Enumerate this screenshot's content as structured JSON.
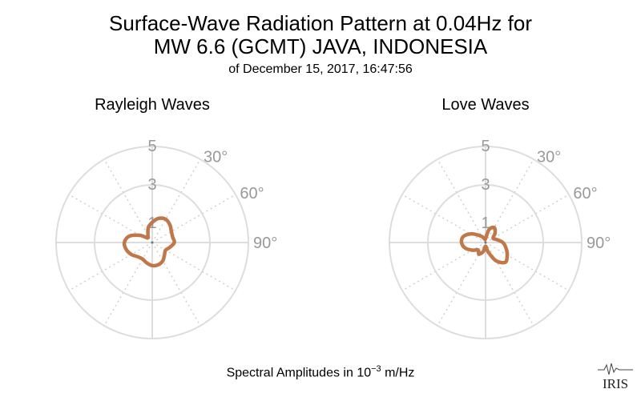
{
  "header": {
    "title_line1": "Surface-Wave Radiation Pattern at 0.04Hz for",
    "title_line2": "MW 6.6 (GCMT) JAVA, INDONESIA",
    "subtitle": "of December 15, 2017, 16:47:56"
  },
  "footer": {
    "label_prefix": "Spectral Amplitudes in 10",
    "label_exponent": "−3",
    "label_suffix": " m/Hz"
  },
  "logo": {
    "text": "IRIS"
  },
  "colors": {
    "pattern": "#c0784a",
    "grid": "#dddddd",
    "tick_text": "#999999"
  },
  "chart_data": [
    {
      "type": "polar-line",
      "title": "Rayleigh Waves",
      "r_ticks": [
        1,
        3,
        5
      ],
      "r_max": 5,
      "theta_tick_labels": [
        "30°",
        "60°",
        "90°"
      ],
      "series": [
        {
          "theta": [
            0,
            15,
            30,
            45,
            60,
            75,
            90,
            105,
            120,
            135,
            150,
            165,
            180,
            195,
            210,
            225,
            240,
            255,
            270,
            285,
            300,
            315,
            330,
            345
          ],
          "r": [
            1.05,
            1.3,
            1.4,
            1.3,
            1.15,
            1.1,
            1.15,
            0.95,
            0.8,
            0.9,
            1.1,
            1.2,
            1.2,
            1.1,
            1.0,
            1.05,
            1.25,
            1.4,
            1.45,
            1.25,
            0.75,
            0.35,
            0.45,
            0.8
          ]
        }
      ]
    },
    {
      "type": "polar-line",
      "title": "Love Waves",
      "r_ticks": [
        1,
        3,
        5
      ],
      "r_max": 5,
      "theta_tick_labels": [
        "30°",
        "60°",
        "90°"
      ],
      "series": [
        {
          "theta": [
            0,
            15,
            30,
            45,
            60,
            75,
            90,
            105,
            120,
            135,
            150,
            165,
            180,
            195,
            210,
            225,
            240,
            255,
            270,
            285,
            300,
            315,
            330,
            345
          ],
          "r": [
            0.2,
            0.7,
            0.9,
            0.7,
            0.45,
            0.6,
            0.9,
            1.1,
            1.3,
            1.45,
            1.1,
            0.5,
            0.2,
            0.5,
            0.7,
            0.55,
            0.8,
            1.1,
            1.25,
            1.2,
            0.9,
            0.55,
            0.35,
            0.2
          ]
        }
      ]
    }
  ]
}
